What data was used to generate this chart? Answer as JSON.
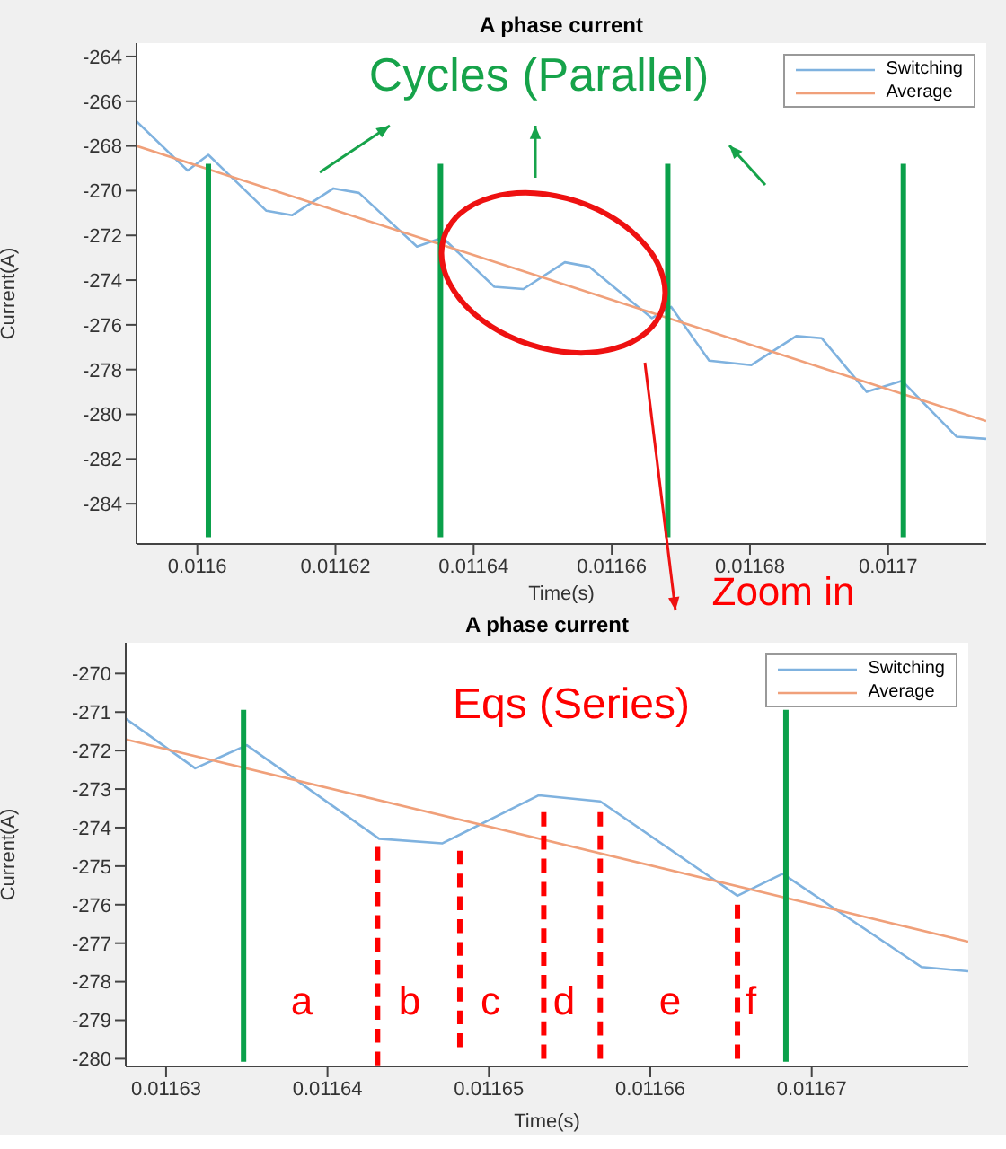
{
  "chart_data": [
    {
      "type": "line",
      "title": "A phase current",
      "xlabel": "Time(s)",
      "ylabel": "Current(A)",
      "legend": "top right",
      "xlim": [
        0.0115912,
        0.0117142
      ],
      "ylim": [
        -285.8,
        -263.4
      ],
      "xticks": [
        0.0116,
        0.01162,
        0.01164,
        0.01166,
        0.01168,
        0.0117
      ],
      "yticks": [
        -264,
        -266,
        -268,
        -270,
        -272,
        -274,
        -276,
        -278,
        -280,
        -282,
        -284
      ],
      "annotations": [
        "Cycles (Parallel)",
        "Zoom in"
      ],
      "series": [
        {
          "name": "Switching",
          "color": "#7fb2df",
          "x": [
            0.0115912,
            0.0115986,
            0.0116016,
            0.01161,
            0.0116137,
            0.0116197,
            0.0116234,
            0.0116318,
            0.0116355,
            0.011643,
            0.0116472,
            0.0116532,
            0.0116567,
            0.0116658,
            0.0116686,
            0.0116741,
            0.0116802,
            0.0116867,
            0.0116904,
            0.0116969,
            0.011702,
            0.0117099,
            0.0117142
          ],
          "values": [
            -266.9,
            -269.1,
            -268.4,
            -270.9,
            -271.1,
            -269.9,
            -270.1,
            -272.5,
            -272.1,
            -274.3,
            -274.4,
            -273.2,
            -273.4,
            -275.7,
            -275.2,
            -277.6,
            -277.8,
            -276.5,
            -276.6,
            -279.0,
            -278.5,
            -281.0,
            -281.1
          ]
        },
        {
          "name": "Average",
          "color": "#f0a07a",
          "x": [
            0.0115912,
            0.0117142
          ],
          "values": [
            -268.0,
            -280.3
          ]
        },
        {
          "color": "#0aa04a",
          "x": [
            0.0116016,
            0.0116016
          ],
          "values": [
            -268.8,
            -285.5
          ]
        },
        {
          "color": "#0aa04a",
          "x": [
            0.0116352,
            0.0116352
          ],
          "values": [
            -268.8,
            -285.5
          ]
        },
        {
          "color": "#0aa04a",
          "x": [
            0.0116681,
            0.0116681
          ],
          "values": [
            -268.8,
            -285.5
          ]
        },
        {
          "color": "#0aa04a",
          "x": [
            0.0117022,
            0.0117022
          ],
          "values": [
            -268.8,
            -285.5
          ]
        }
      ]
    },
    {
      "type": "line",
      "title": "A phase current",
      "xlabel": "Time(s)",
      "ylabel": "Current(A)",
      "legend": "top right",
      "xlim": [
        0.0116275,
        0.0116797
      ],
      "ylim": [
        -280.2,
        -269.2
      ],
      "xticks": [
        0.01163,
        0.01164,
        0.01165,
        0.01166,
        0.01167
      ],
      "yticks": [
        -270,
        -271,
        -272,
        -273,
        -274,
        -275,
        -276,
        -277,
        -278,
        -279,
        -280
      ],
      "annotations": [
        "Eqs (Series)",
        "a",
        "b",
        "c",
        "d",
        "e",
        "f"
      ],
      "series": [
        {
          "name": "Switching",
          "color": "#7fb2df",
          "x": [
            0.0116275,
            0.0116318,
            0.011635,
            0.0116432,
            0.0116471,
            0.0116531,
            0.0116569,
            0.0116654,
            0.0116682,
            0.0116768,
            0.0116797
          ],
          "values": [
            -271.17,
            -272.46,
            -271.86,
            -274.29,
            -274.41,
            -273.16,
            -273.32,
            -275.77,
            -275.2,
            -277.62,
            -277.73
          ]
        },
        {
          "name": "Average",
          "color": "#f0a07a",
          "x": [
            0.0116275,
            0.0116797
          ],
          "values": [
            -271.71,
            -276.96
          ]
        },
        {
          "color": "#0aa04a",
          "x": [
            0.0116348,
            0.0116348
          ],
          "values": [
            -270.94,
            -280.08
          ]
        },
        {
          "color": "#0aa04a",
          "x": [
            0.0116684,
            0.0116684
          ],
          "values": [
            -270.94,
            -280.08
          ]
        },
        {
          "color": "#ff0000",
          "line_style": "dashed",
          "x": [
            0.0116431,
            0.0116431
          ],
          "values": [
            -274.5,
            -280.17
          ]
        },
        {
          "color": "#ff0000",
          "line_style": "dashed",
          "x": [
            0.0116482,
            0.0116482
          ],
          "values": [
            -274.6,
            -279.7
          ]
        },
        {
          "color": "#ff0000",
          "line_style": "dashed",
          "x": [
            0.0116534,
            0.0116534
          ],
          "values": [
            -273.6,
            -280.0
          ]
        },
        {
          "color": "#ff0000",
          "line_style": "dashed",
          "x": [
            0.0116569,
            0.0116569
          ],
          "values": [
            -273.6,
            -280.0
          ]
        },
        {
          "color": "#ff0000",
          "line_style": "dashed",
          "x": [
            0.0116654,
            0.0116654
          ],
          "values": [
            -276.0,
            -280.0
          ]
        }
      ]
    }
  ]
}
